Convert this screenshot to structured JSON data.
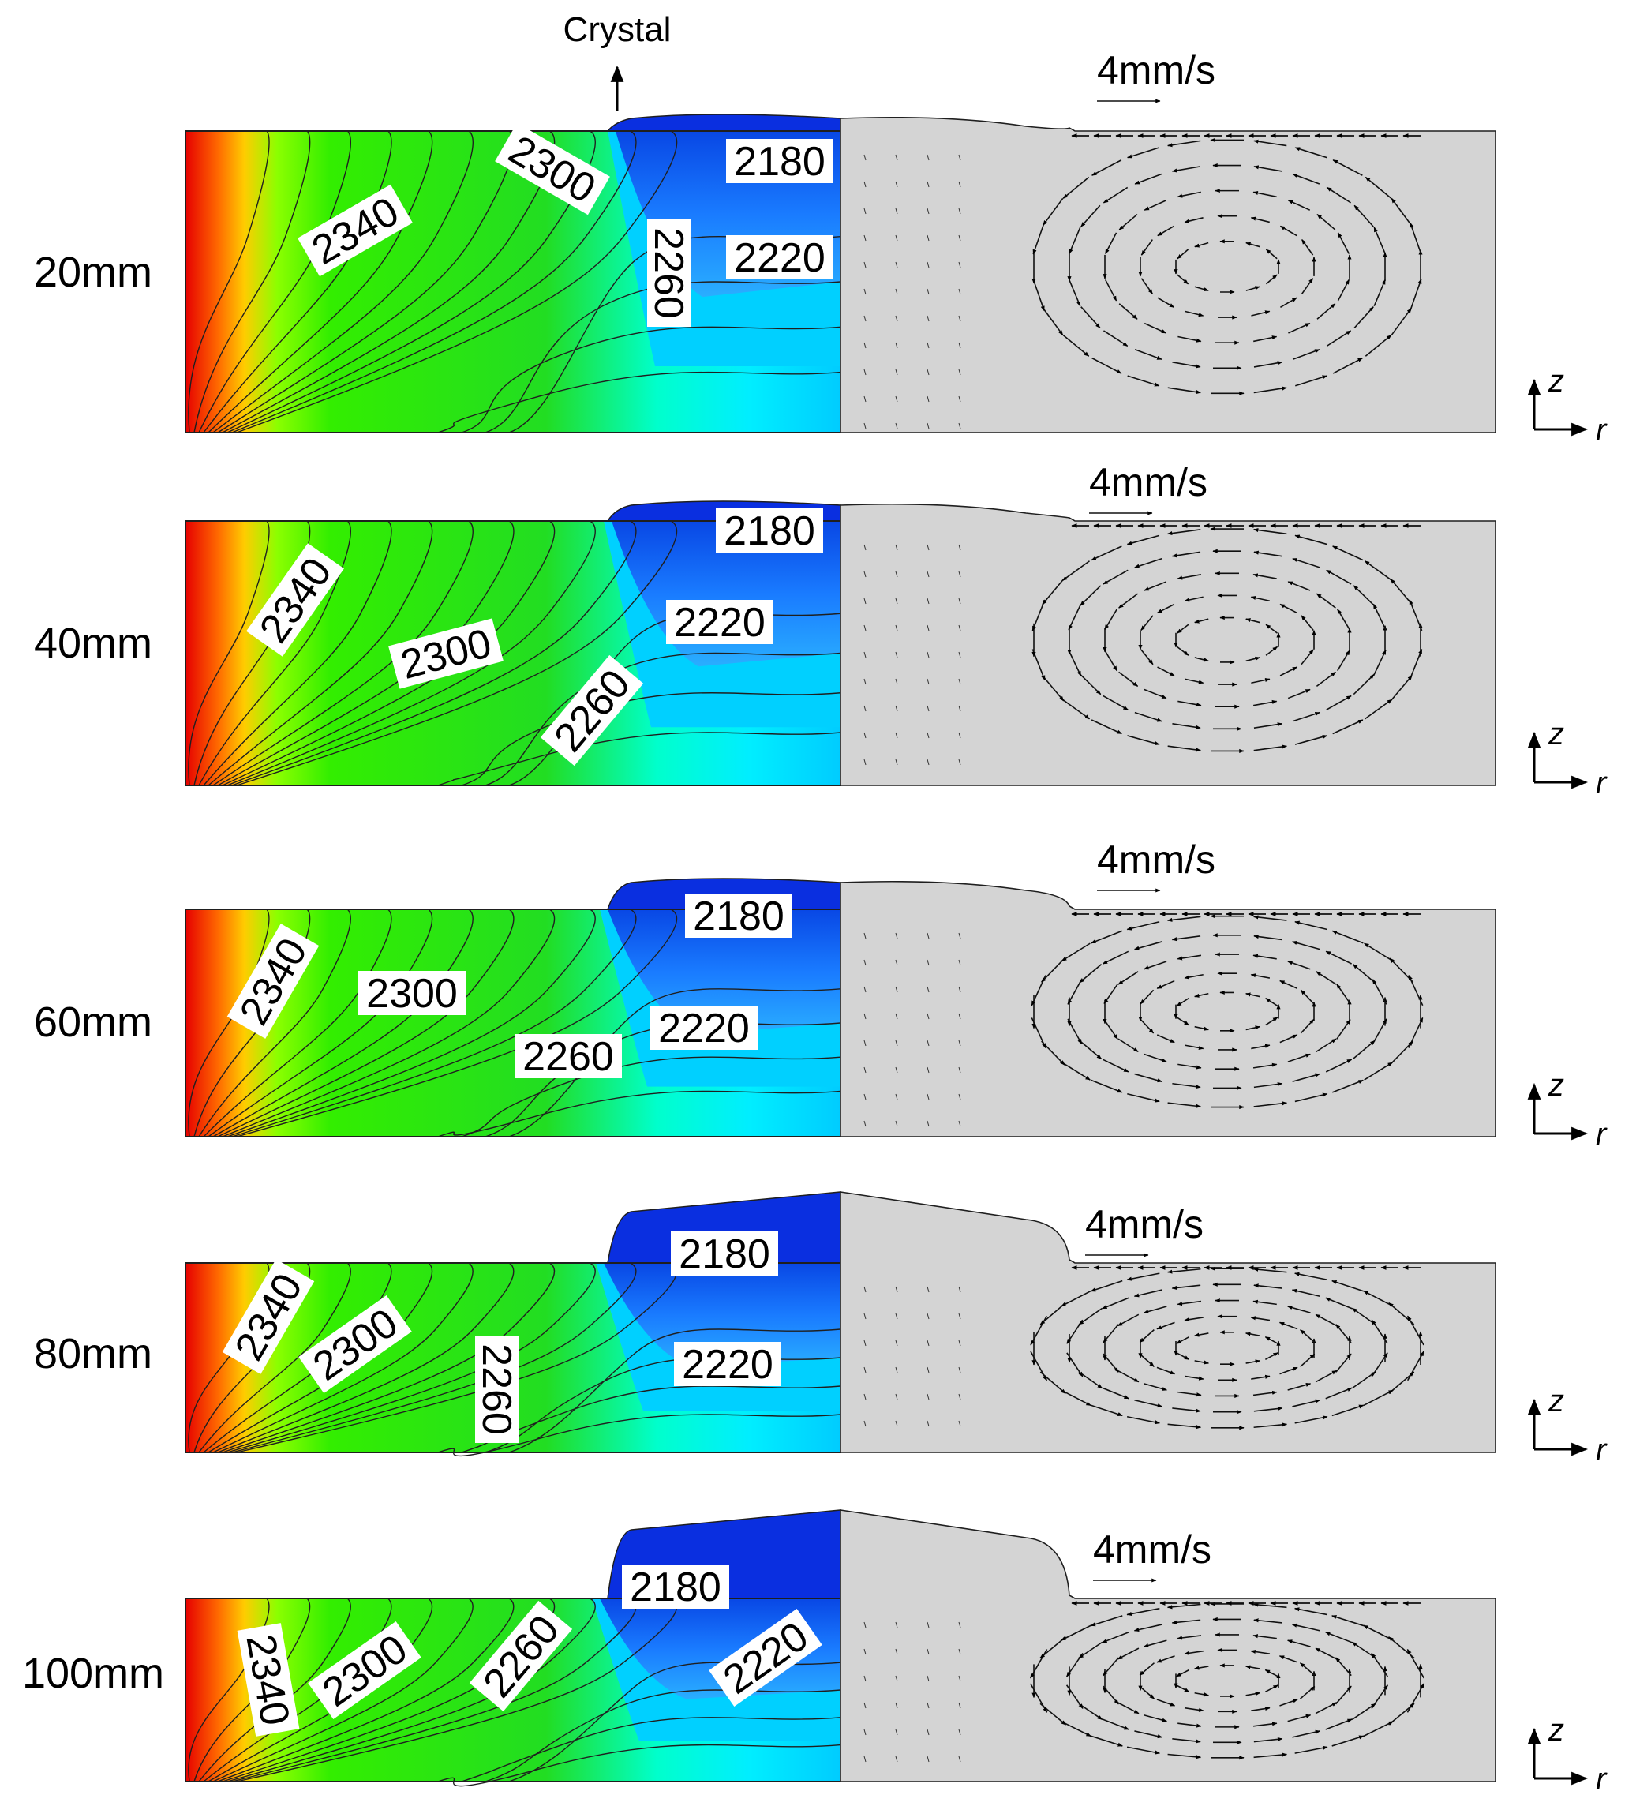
{
  "crystal_label": "Crystal",
  "panels": [
    {
      "length_label": "20mm",
      "velocity_label": "4mm/s",
      "iso_labels": [
        "2180",
        "2220",
        "2260",
        "2300",
        "2340"
      ]
    },
    {
      "length_label": "40mm",
      "velocity_label": "4mm/s",
      "iso_labels": [
        "2180",
        "2220",
        "2260",
        "2300",
        "2340"
      ]
    },
    {
      "length_label": "60mm",
      "velocity_label": "4mm/s",
      "iso_labels": [
        "2180",
        "2220",
        "2260",
        "2300",
        "2340"
      ]
    },
    {
      "length_label": "80mm",
      "velocity_label": "4mm/s",
      "iso_labels": [
        "2180",
        "2220",
        "2260",
        "2300",
        "2340"
      ]
    },
    {
      "length_label": "100mm",
      "velocity_label": "4mm/s",
      "iso_labels": [
        "2180",
        "2220",
        "2260",
        "2300",
        "2340"
      ]
    }
  ],
  "axes": {
    "z": "z",
    "r": "r"
  },
  "colors": {
    "background": "#ffffff",
    "flow_fill": "#d4d4d4",
    "contour_line": "#1f1f1f"
  }
}
